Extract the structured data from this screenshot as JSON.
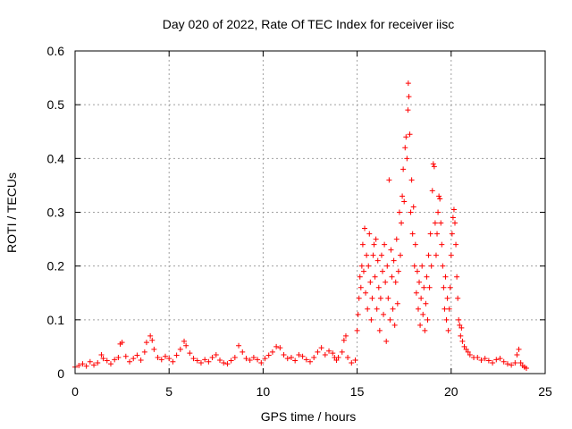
{
  "chart_data": {
    "type": "scatter",
    "title": "Day 020 of 2022, Rate Of TEC Index for receiver iisc",
    "xlabel": "GPS time / hours",
    "ylabel": "ROTI / TECUs",
    "xlim": [
      0,
      25
    ],
    "ylim": [
      0,
      0.6
    ],
    "xticks": [
      0,
      5,
      10,
      15,
      20,
      25
    ],
    "yticks": [
      0,
      0.1,
      0.2,
      0.3,
      0.4,
      0.5,
      0.6
    ],
    "xtick_labels": [
      "0",
      "5",
      "10",
      "15",
      "20",
      "25"
    ],
    "ytick_labels": [
      "0",
      "0.1",
      "0.2",
      "0.3",
      "0.4",
      "0.5",
      "0.6"
    ],
    "grid": true,
    "marker": "+",
    "color": "#ff0000",
    "series": [
      {
        "points": [
          [
            0.0,
            0.012
          ],
          [
            0.2,
            0.015
          ],
          [
            0.4,
            0.018
          ],
          [
            0.6,
            0.014
          ],
          [
            0.8,
            0.022
          ],
          [
            1.0,
            0.016
          ],
          [
            1.2,
            0.02
          ],
          [
            1.4,
            0.035
          ],
          [
            1.5,
            0.028
          ],
          [
            1.7,
            0.024
          ],
          [
            1.9,
            0.018
          ],
          [
            2.1,
            0.026
          ],
          [
            2.3,
            0.03
          ],
          [
            2.4,
            0.055
          ],
          [
            2.5,
            0.058
          ],
          [
            2.7,
            0.032
          ],
          [
            2.9,
            0.022
          ],
          [
            3.1,
            0.028
          ],
          [
            3.3,
            0.034
          ],
          [
            3.5,
            0.025
          ],
          [
            3.7,
            0.04
          ],
          [
            3.8,
            0.058
          ],
          [
            4.0,
            0.07
          ],
          [
            4.1,
            0.062
          ],
          [
            4.2,
            0.045
          ],
          [
            4.4,
            0.03
          ],
          [
            4.6,
            0.026
          ],
          [
            4.8,
            0.032
          ],
          [
            5.0,
            0.028
          ],
          [
            5.2,
            0.022
          ],
          [
            5.4,
            0.034
          ],
          [
            5.6,
            0.045
          ],
          [
            5.8,
            0.06
          ],
          [
            5.9,
            0.052
          ],
          [
            6.1,
            0.038
          ],
          [
            6.3,
            0.028
          ],
          [
            6.5,
            0.024
          ],
          [
            6.7,
            0.02
          ],
          [
            6.9,
            0.026
          ],
          [
            7.1,
            0.022
          ],
          [
            7.3,
            0.03
          ],
          [
            7.5,
            0.035
          ],
          [
            7.7,
            0.025
          ],
          [
            7.9,
            0.02
          ],
          [
            8.1,
            0.018
          ],
          [
            8.3,
            0.024
          ],
          [
            8.5,
            0.03
          ],
          [
            8.7,
            0.052
          ],
          [
            8.9,
            0.04
          ],
          [
            9.1,
            0.028
          ],
          [
            9.3,
            0.025
          ],
          [
            9.5,
            0.03
          ],
          [
            9.7,
            0.026
          ],
          [
            9.9,
            0.02
          ],
          [
            10.1,
            0.028
          ],
          [
            10.3,
            0.034
          ],
          [
            10.5,
            0.04
          ],
          [
            10.7,
            0.05
          ],
          [
            10.9,
            0.048
          ],
          [
            11.1,
            0.035
          ],
          [
            11.3,
            0.028
          ],
          [
            11.5,
            0.03
          ],
          [
            11.7,
            0.024
          ],
          [
            11.9,
            0.035
          ],
          [
            12.1,
            0.032
          ],
          [
            12.3,
            0.026
          ],
          [
            12.5,
            0.022
          ],
          [
            12.7,
            0.03
          ],
          [
            12.9,
            0.04
          ],
          [
            13.1,
            0.048
          ],
          [
            13.3,
            0.035
          ],
          [
            13.5,
            0.042
          ],
          [
            13.7,
            0.038
          ],
          [
            13.8,
            0.03
          ],
          [
            13.9,
            0.025
          ],
          [
            14.0,
            0.03
          ],
          [
            14.2,
            0.04
          ],
          [
            14.3,
            0.062
          ],
          [
            14.4,
            0.07
          ],
          [
            14.5,
            0.03
          ],
          [
            14.7,
            0.02
          ],
          [
            14.9,
            0.025
          ],
          [
            15.0,
            0.08
          ],
          [
            15.05,
            0.11
          ],
          [
            15.1,
            0.14
          ],
          [
            15.15,
            0.18
          ],
          [
            15.2,
            0.16
          ],
          [
            15.25,
            0.2
          ],
          [
            15.3,
            0.24
          ],
          [
            15.35,
            0.19
          ],
          [
            15.4,
            0.27
          ],
          [
            15.45,
            0.15
          ],
          [
            15.5,
            0.22
          ],
          [
            15.55,
            0.12
          ],
          [
            15.6,
            0.2
          ],
          [
            15.65,
            0.26
          ],
          [
            15.7,
            0.17
          ],
          [
            15.75,
            0.1
          ],
          [
            15.8,
            0.14
          ],
          [
            15.85,
            0.22
          ],
          [
            15.9,
            0.24
          ],
          [
            15.95,
            0.18
          ],
          [
            16.0,
            0.25
          ],
          [
            16.05,
            0.12
          ],
          [
            16.1,
            0.21
          ],
          [
            16.15,
            0.16
          ],
          [
            16.2,
            0.08
          ],
          [
            16.25,
            0.14
          ],
          [
            16.3,
            0.22
          ],
          [
            16.35,
            0.19
          ],
          [
            16.4,
            0.11
          ],
          [
            16.45,
            0.24
          ],
          [
            16.5,
            0.17
          ],
          [
            16.55,
            0.06
          ],
          [
            16.6,
            0.2
          ],
          [
            16.65,
            0.14
          ],
          [
            16.7,
            0.36
          ],
          [
            16.75,
            0.1
          ],
          [
            16.8,
            0.23
          ],
          [
            16.85,
            0.18
          ],
          [
            16.9,
            0.12
          ],
          [
            16.95,
            0.21
          ],
          [
            17.0,
            0.09
          ],
          [
            17.05,
            0.17
          ],
          [
            17.1,
            0.25
          ],
          [
            17.15,
            0.13
          ],
          [
            17.2,
            0.19
          ],
          [
            17.25,
            0.3
          ],
          [
            17.3,
            0.22
          ],
          [
            17.35,
            0.28
          ],
          [
            17.4,
            0.33
          ],
          [
            17.45,
            0.38
          ],
          [
            17.5,
            0.32
          ],
          [
            17.55,
            0.42
          ],
          [
            17.6,
            0.44
          ],
          [
            17.65,
            0.4
          ],
          [
            17.7,
            0.49
          ],
          [
            17.72,
            0.54
          ],
          [
            17.75,
            0.515
          ],
          [
            17.8,
            0.445
          ],
          [
            17.85,
            0.3
          ],
          [
            17.9,
            0.36
          ],
          [
            17.95,
            0.26
          ],
          [
            18.0,
            0.31
          ],
          [
            18.05,
            0.2
          ],
          [
            18.1,
            0.24
          ],
          [
            18.15,
            0.15
          ],
          [
            18.2,
            0.19
          ],
          [
            18.25,
            0.12
          ],
          [
            18.3,
            0.17
          ],
          [
            18.35,
            0.09
          ],
          [
            18.4,
            0.14
          ],
          [
            18.45,
            0.2
          ],
          [
            18.5,
            0.11
          ],
          [
            18.55,
            0.16
          ],
          [
            18.6,
            0.08
          ],
          [
            18.65,
            0.13
          ],
          [
            18.7,
            0.18
          ],
          [
            18.75,
            0.1
          ],
          [
            18.8,
            0.22
          ],
          [
            18.85,
            0.16
          ],
          [
            18.9,
            0.26
          ],
          [
            18.95,
            0.2
          ],
          [
            19.0,
            0.34
          ],
          [
            19.05,
            0.39
          ],
          [
            19.1,
            0.385
          ],
          [
            19.15,
            0.28
          ],
          [
            19.2,
            0.22
          ],
          [
            19.25,
            0.26
          ],
          [
            19.3,
            0.3
          ],
          [
            19.35,
            0.33
          ],
          [
            19.4,
            0.325
          ],
          [
            19.45,
            0.28
          ],
          [
            19.5,
            0.24
          ],
          [
            19.55,
            0.2
          ],
          [
            19.6,
            0.16
          ],
          [
            19.65,
            0.12
          ],
          [
            19.7,
            0.18
          ],
          [
            19.75,
            0.1
          ],
          [
            19.8,
            0.14
          ],
          [
            19.85,
            0.08
          ],
          [
            19.9,
            0.12
          ],
          [
            19.95,
            0.16
          ],
          [
            20.0,
            0.22
          ],
          [
            20.05,
            0.26
          ],
          [
            20.1,
            0.29
          ],
          [
            20.15,
            0.305
          ],
          [
            20.2,
            0.28
          ],
          [
            20.25,
            0.24
          ],
          [
            20.3,
            0.18
          ],
          [
            20.35,
            0.14
          ],
          [
            20.4,
            0.1
          ],
          [
            20.45,
            0.09
          ],
          [
            20.5,
            0.07
          ],
          [
            20.55,
            0.085
          ],
          [
            20.6,
            0.06
          ],
          [
            20.7,
            0.05
          ],
          [
            20.8,
            0.045
          ],
          [
            20.9,
            0.04
          ],
          [
            21.0,
            0.035
          ],
          [
            21.2,
            0.03
          ],
          [
            21.4,
            0.03
          ],
          [
            21.6,
            0.025
          ],
          [
            21.8,
            0.028
          ],
          [
            22.0,
            0.024
          ],
          [
            22.2,
            0.02
          ],
          [
            22.4,
            0.026
          ],
          [
            22.6,
            0.028
          ],
          [
            22.8,
            0.022
          ],
          [
            23.0,
            0.018
          ],
          [
            23.2,
            0.016
          ],
          [
            23.4,
            0.02
          ],
          [
            23.5,
            0.035
          ],
          [
            23.6,
            0.045
          ],
          [
            23.7,
            0.02
          ],
          [
            23.8,
            0.015
          ],
          [
            23.9,
            0.012
          ],
          [
            24.0,
            0.01
          ]
        ]
      }
    ]
  }
}
